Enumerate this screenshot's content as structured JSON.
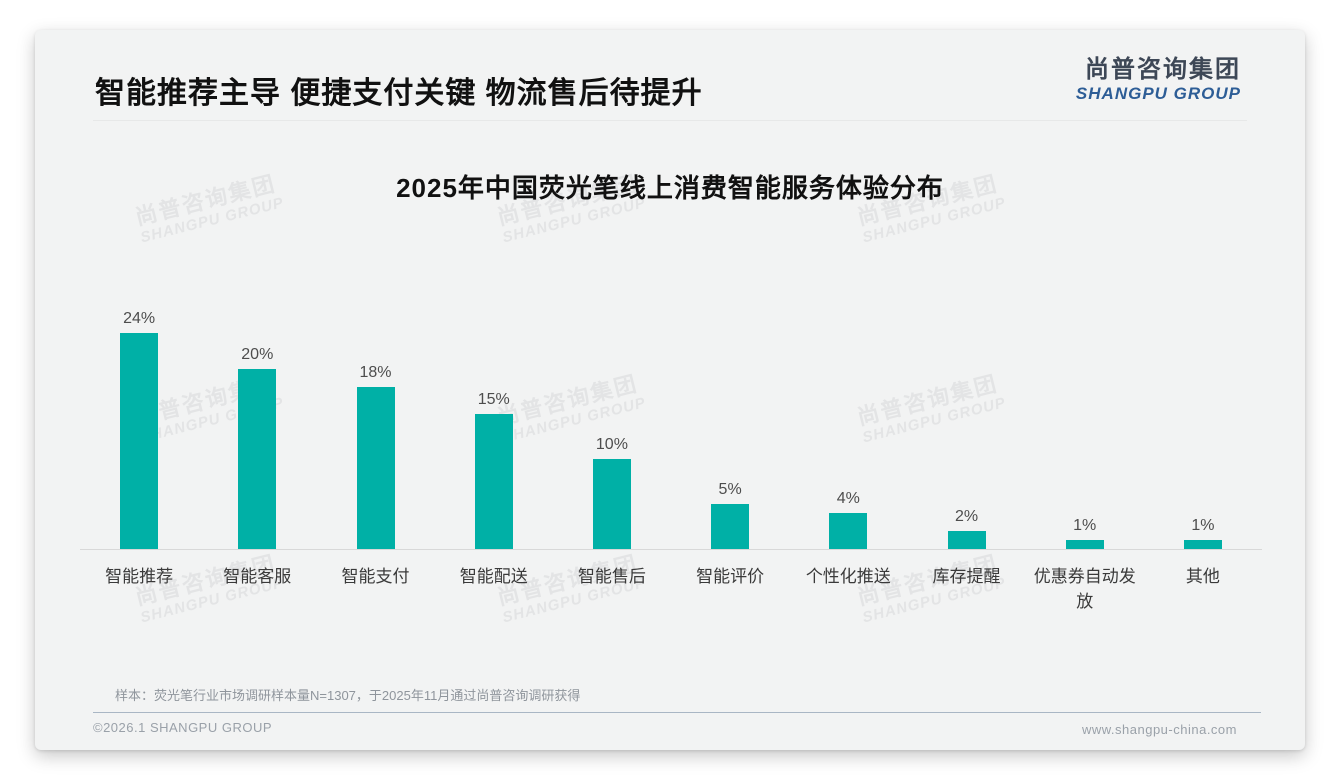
{
  "slide": {
    "title": "智能推荐主导 便捷支付关键 物流售后待提升",
    "logo": {
      "cn": "尚普咨询集团",
      "en": "SHANGPU GROUP"
    },
    "footnote": "样本：荧光笔行业市场调研样本量N=1307，于2025年11月通过尚普咨询调研获得",
    "footer": {
      "left": "©2026.1 SHANGPU GROUP",
      "right": "www.shangpu-china.com"
    },
    "watermark": {
      "cn": "尚普咨询集团",
      "en": "SHANGPU GROUP",
      "grid": "3x3"
    }
  },
  "colors": {
    "bar": "#00b0a6",
    "logo_cn": "#3d4756",
    "logo_en": "#2d5d96",
    "axis": "#d8d8d8",
    "slide_background": "#f2f3f3"
  },
  "chart_data": {
    "type": "bar",
    "title": "2025年中国荧光笔线上消费智能服务体验分布",
    "categories": [
      "智能推荐",
      "智能客服",
      "智能支付",
      "智能配送",
      "智能售后",
      "智能评价",
      "个性化推送",
      "库存提醒",
      "优惠券自动发放",
      "其他"
    ],
    "values": [
      24,
      20,
      18,
      15,
      10,
      5,
      4,
      2,
      1,
      1
    ],
    "unit": "%",
    "xlabel": "",
    "ylabel": "",
    "ylim": [
      0,
      25
    ],
    "grid": false,
    "legend": null,
    "data_labels": true
  }
}
